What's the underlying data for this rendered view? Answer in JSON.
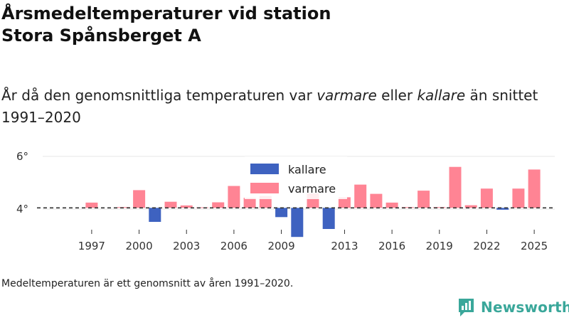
{
  "header": {
    "title_line1": "Årsmedeltemperaturer vid station",
    "title_line2": "Stora Spånsberget A",
    "subtitle_pre": "År då den genomsnittliga temperaturen var ",
    "subtitle_warm": "varmare",
    "subtitle_mid": " eller ",
    "subtitle_cold": "kallare",
    "subtitle_post": " än snittet 1991–2020"
  },
  "footer": {
    "note": "Medeltemperaturen är ett genomsnitt av åren 1991–2020.",
    "brand": "Newsworthy"
  },
  "colors": {
    "warm": "#ff8494",
    "cold": "#3e62c0",
    "reference": "#333333",
    "brand": "#3aa79a"
  },
  "chart_data": {
    "type": "bar",
    "title": "Årsmedeltemperaturer vid station Stora Spånsberget A",
    "baseline": 4.05,
    "baseline_label": "Medeltemperaturen är ett genomsnitt av åren 1991–2020.",
    "ylim": [
      2.9,
      6.4
    ],
    "yticks": [
      {
        "value": 4,
        "label": "4°"
      },
      {
        "value": 6,
        "label": "6°"
      }
    ],
    "xlim": [
      1993.9,
      2026.3
    ],
    "xticks": [
      1997,
      2000,
      2003,
      2006,
      2009,
      2013,
      2016,
      2019,
      2022,
      2025
    ],
    "legend": {
      "position": "top-center",
      "items": [
        {
          "label": "kallare",
          "color": "#3e62c0"
        },
        {
          "label": "varmare",
          "color": "#ff8494"
        }
      ]
    },
    "x": [
      1997,
      1999,
      2000,
      2001,
      2002,
      2003,
      2004,
      2005,
      2006,
      2007,
      2008,
      2009,
      2010,
      2011,
      2012,
      2013,
      2014,
      2015,
      2016,
      2017,
      2018,
      2019,
      2020,
      2021,
      2022,
      2023,
      2024,
      2025
    ],
    "values": [
      4.25,
      4.08,
      4.72,
      3.52,
      4.28,
      4.14,
      4.07,
      4.26,
      4.88,
      4.43,
      4.5,
      3.7,
      2.95,
      4.6,
      3.25,
      4.45,
      4.93,
      4.58,
      4.25,
      4.08,
      4.7,
      4.08,
      5.6,
      4.15,
      4.78,
      3.98,
      4.78,
      5.5
    ]
  }
}
